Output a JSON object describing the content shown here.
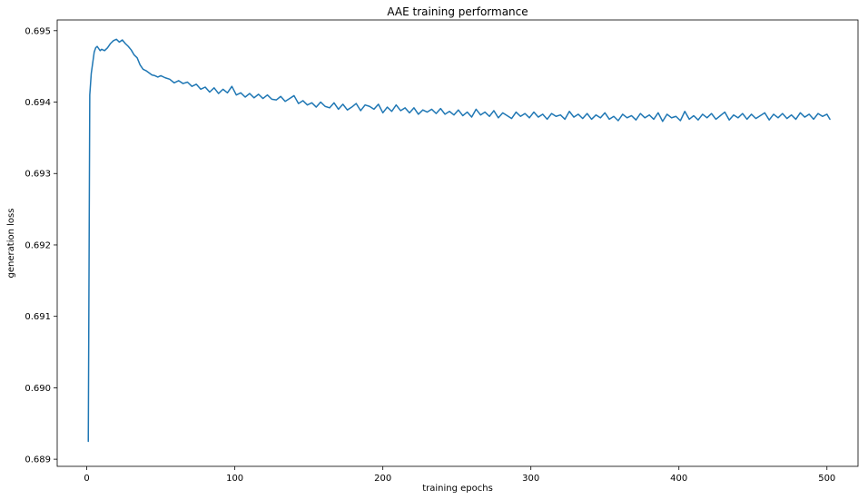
{
  "chart_data": {
    "type": "line",
    "title": "AAE training performance",
    "xlabel": "training epochs",
    "ylabel": "generation loss",
    "xlim": [
      -20,
      521
    ],
    "ylim": [
      0.6889,
      0.69515
    ],
    "grid": false,
    "legend": "none",
    "x_ticks": [
      {
        "value": 0,
        "label": "0"
      },
      {
        "value": 100,
        "label": "100"
      },
      {
        "value": 200,
        "label": "200"
      },
      {
        "value": 300,
        "label": "300"
      },
      {
        "value": 400,
        "label": "400"
      },
      {
        "value": 500,
        "label": "500"
      }
    ],
    "y_ticks": [
      {
        "value": 0.689,
        "label": "0.689"
      },
      {
        "value": 0.69,
        "label": "0.690"
      },
      {
        "value": 0.691,
        "label": "0.691"
      },
      {
        "value": 0.692,
        "label": "0.692"
      },
      {
        "value": 0.693,
        "label": "0.693"
      },
      {
        "value": 0.694,
        "label": "0.694"
      },
      {
        "value": 0.695,
        "label": "0.695"
      }
    ],
    "series": [
      {
        "color": "#1f77b4",
        "x": [
          1,
          2,
          3,
          4,
          5,
          6,
          7,
          8,
          9,
          10,
          12,
          14,
          16,
          18,
          20,
          22,
          24,
          26,
          28,
          30,
          32,
          34,
          36,
          38,
          40,
          42,
          44,
          46,
          48,
          50,
          53,
          56,
          59,
          62,
          65,
          68,
          71,
          74,
          77,
          80,
          83,
          86,
          89,
          92,
          95,
          98,
          101,
          104,
          107,
          110,
          113,
          116,
          119,
          122,
          125,
          128,
          131,
          134,
          137,
          140,
          143,
          146,
          149,
          152,
          155,
          158,
          161,
          164,
          167,
          170,
          173,
          176,
          179,
          182,
          185,
          188,
          191,
          194,
          197,
          200,
          203,
          206,
          209,
          212,
          215,
          218,
          221,
          224,
          227,
          230,
          233,
          236,
          239,
          242,
          245,
          248,
          251,
          254,
          257,
          260,
          263,
          266,
          269,
          272,
          275,
          278,
          281,
          284,
          287,
          290,
          293,
          296,
          299,
          302,
          305,
          308,
          311,
          314,
          317,
          320,
          323,
          326,
          329,
          332,
          335,
          338,
          341,
          344,
          347,
          350,
          353,
          356,
          359,
          362,
          365,
          368,
          371,
          374,
          377,
          380,
          383,
          386,
          389,
          392,
          395,
          398,
          401,
          404,
          407,
          410,
          413,
          416,
          419,
          422,
          425,
          428,
          431,
          434,
          437,
          440,
          443,
          446,
          449,
          452,
          455,
          458,
          461,
          464,
          467,
          470,
          473,
          476,
          479,
          482,
          485,
          488,
          491,
          494,
          497,
          500,
          502
        ],
        "y": [
          0.68925,
          0.6941,
          0.6944,
          0.69455,
          0.6947,
          0.69476,
          0.69478,
          0.69475,
          0.69472,
          0.69474,
          0.69472,
          0.69476,
          0.69482,
          0.69486,
          0.69488,
          0.69484,
          0.69487,
          0.69482,
          0.69478,
          0.69473,
          0.69466,
          0.69462,
          0.69452,
          0.69446,
          0.69444,
          0.69441,
          0.69438,
          0.69437,
          0.69435,
          0.69437,
          0.69434,
          0.69432,
          0.69427,
          0.6943,
          0.69426,
          0.69428,
          0.69422,
          0.69425,
          0.69418,
          0.69421,
          0.69414,
          0.6942,
          0.69412,
          0.69418,
          0.69413,
          0.69422,
          0.6941,
          0.69413,
          0.69407,
          0.69412,
          0.69406,
          0.69411,
          0.69405,
          0.6941,
          0.69404,
          0.69403,
          0.69408,
          0.69401,
          0.69405,
          0.69409,
          0.69398,
          0.69402,
          0.69396,
          0.69399,
          0.69393,
          0.694,
          0.69394,
          0.69392,
          0.69399,
          0.6939,
          0.69397,
          0.69389,
          0.69393,
          0.69398,
          0.69388,
          0.69396,
          0.69394,
          0.6939,
          0.69397,
          0.69385,
          0.69393,
          0.69387,
          0.69396,
          0.69388,
          0.69392,
          0.69385,
          0.69392,
          0.69383,
          0.69389,
          0.69386,
          0.6939,
          0.69384,
          0.69391,
          0.69383,
          0.69387,
          0.69382,
          0.69389,
          0.69381,
          0.69386,
          0.69379,
          0.6939,
          0.69382,
          0.69386,
          0.6938,
          0.69388,
          0.69378,
          0.69385,
          0.69381,
          0.69377,
          0.69386,
          0.6938,
          0.69384,
          0.69378,
          0.69386,
          0.69379,
          0.69383,
          0.69376,
          0.69384,
          0.6938,
          0.69382,
          0.69376,
          0.69387,
          0.69379,
          0.69383,
          0.69377,
          0.69384,
          0.69376,
          0.69382,
          0.69378,
          0.69385,
          0.69376,
          0.6938,
          0.69374,
          0.69383,
          0.69378,
          0.69381,
          0.69375,
          0.69384,
          0.69378,
          0.69382,
          0.69376,
          0.69385,
          0.69373,
          0.69383,
          0.69378,
          0.6938,
          0.69374,
          0.69387,
          0.69376,
          0.69381,
          0.69375,
          0.69383,
          0.69378,
          0.69384,
          0.69376,
          0.69381,
          0.69386,
          0.69375,
          0.69382,
          0.69378,
          0.69384,
          0.69376,
          0.69383,
          0.69377,
          0.69381,
          0.69385,
          0.69375,
          0.69383,
          0.69378,
          0.69384,
          0.69377,
          0.69382,
          0.69376,
          0.69385,
          0.69379,
          0.69383,
          0.69376,
          0.69384,
          0.6938,
          0.69383,
          0.69376
        ]
      }
    ]
  }
}
